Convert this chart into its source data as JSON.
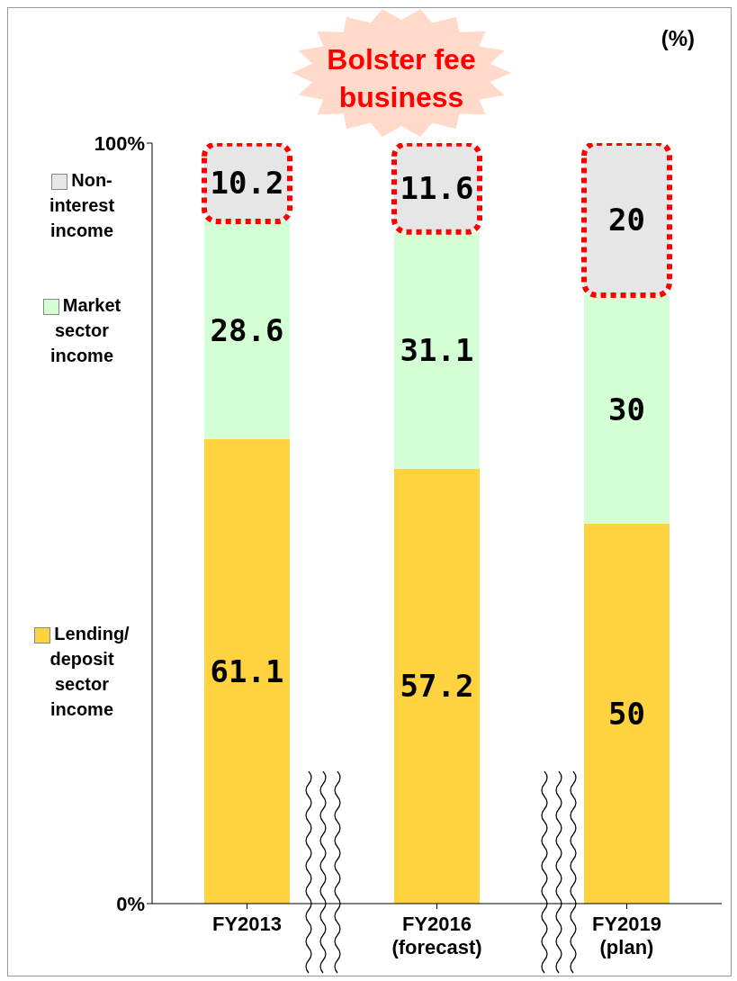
{
  "chart_data": {
    "type": "bar",
    "stacked": true,
    "ylabel": "(%)",
    "annotations": [
      "Bolster fee business"
    ],
    "categories": [
      "FY2013",
      "FY2016\n(forecast)",
      "FY2019\n(plan)"
    ],
    "series": [
      {
        "name": "Lending/\ndeposit\nsector\nincome",
        "color": "#ffd23f",
        "values": [
          61.1,
          57.2,
          50
        ]
      },
      {
        "name": "Market\nsector\nincome",
        "color": "#d4ffd4",
        "values": [
          28.6,
          31.1,
          30
        ]
      },
      {
        "name": "Non-\ninterest\nincome",
        "color": "#e6e6e6",
        "values": [
          10.2,
          11.6,
          20
        ]
      }
    ],
    "ylim": [
      0,
      100
    ],
    "yticks": [
      {
        "value": 0,
        "label": "0%"
      },
      {
        "value": 100,
        "label": "100%"
      }
    ],
    "grid": false,
    "legend": "left",
    "data_labels": true
  }
}
